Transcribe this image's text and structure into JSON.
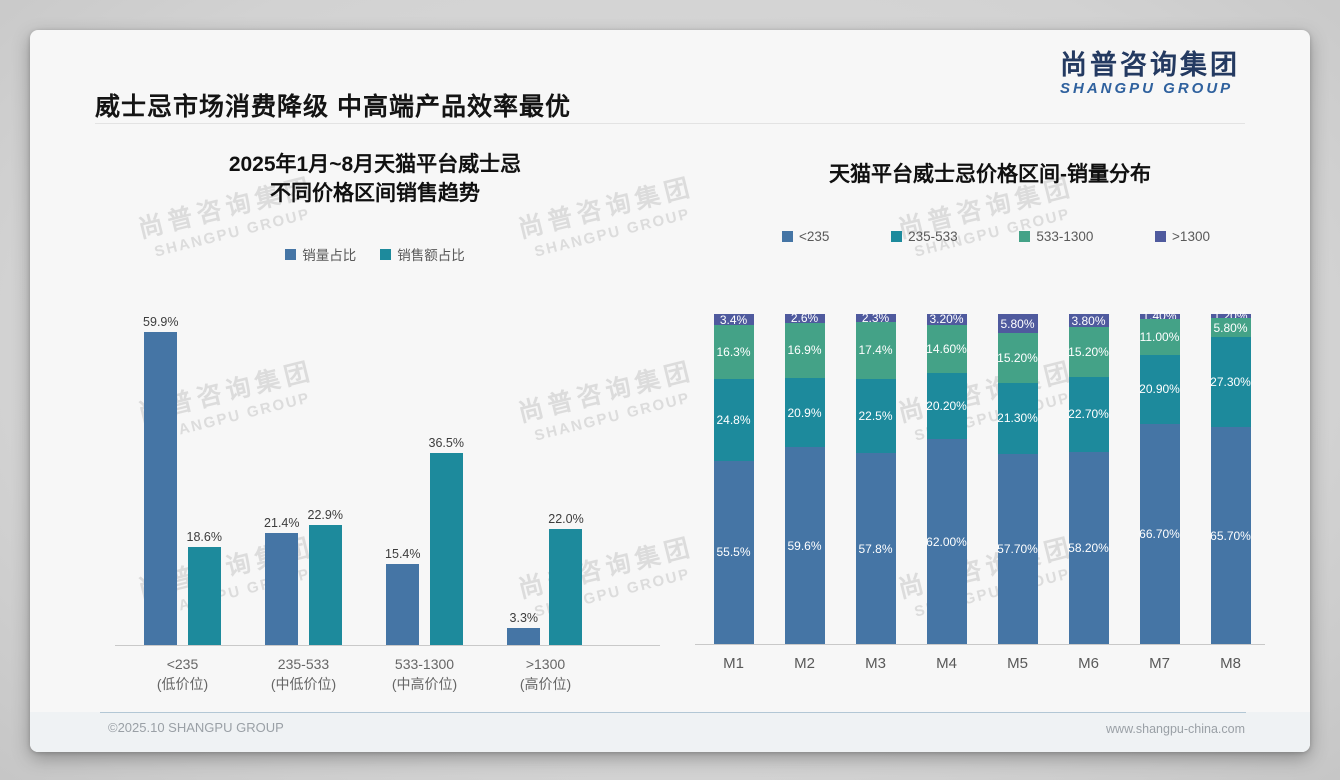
{
  "page": {
    "title": "威士忌市场消费降级 中高端产品效率最优",
    "logo": {
      "cn": "尚普咨询集团",
      "en": "SHANGPU GROUP"
    },
    "watermark": {
      "cn": "尚普咨询集团",
      "en": "SHANGPU GROUP"
    },
    "footer": {
      "left": "©2025.10 SHANGPU GROUP",
      "right": "www.shangpu-china.com"
    }
  },
  "colors": {
    "blue": "#4575a5",
    "teal": "#1d8a9c",
    "green": "#44a287",
    "indigo": "#4f5a9e"
  },
  "chart_data": [
    {
      "type": "bar",
      "title_lines": [
        "2025年1月~8月天猫平台威士忌",
        "不同价格区间销售趋势"
      ],
      "legend_position": "top",
      "grid": false,
      "ylim": [
        0,
        63
      ],
      "categories": [
        {
          "label": "<235",
          "sub": "(低价位)"
        },
        {
          "label": "235-533",
          "sub": "(中低价位)"
        },
        {
          "label": "533-1300",
          "sub": "(中高价位)"
        },
        {
          "label": ">1300",
          "sub": "(高价位)"
        }
      ],
      "series": [
        {
          "name": "销量占比",
          "color": "blue",
          "values": [
            59.9,
            21.4,
            15.4,
            3.3
          ],
          "labels": [
            "59.9%",
            "21.4%",
            "15.4%",
            "3.3%"
          ]
        },
        {
          "name": "销售额占比",
          "color": "teal",
          "values": [
            18.6,
            22.9,
            36.5,
            22.0
          ],
          "labels": [
            "18.6%",
            "22.9%",
            "36.5%",
            "22.0%"
          ]
        }
      ]
    },
    {
      "type": "stacked_bar",
      "title": "天猫平台威士忌价格区间-销量分布",
      "legend_position": "top",
      "grid": false,
      "ylim": [
        0,
        100
      ],
      "categories": [
        "M1",
        "M2",
        "M3",
        "M4",
        "M5",
        "M6",
        "M7",
        "M8"
      ],
      "series": [
        {
          "name": "<235",
          "color": "blue",
          "values": [
            55.5,
            59.6,
            57.8,
            62.0,
            57.7,
            58.2,
            66.7,
            65.7
          ],
          "labels": [
            "55.5%",
            "59.6%",
            "57.8%",
            "62.00%",
            "57.70%",
            "58.20%",
            "66.70%",
            "65.70%"
          ]
        },
        {
          "name": "235-533",
          "color": "teal",
          "values": [
            24.8,
            20.9,
            22.5,
            20.2,
            21.3,
            22.7,
            20.9,
            27.3
          ],
          "labels": [
            "24.8%",
            "20.9%",
            "22.5%",
            "20.20%",
            "21.30%",
            "22.70%",
            "20.90%",
            "27.30%"
          ]
        },
        {
          "name": "533-1300",
          "color": "green",
          "values": [
            16.3,
            16.9,
            17.4,
            14.6,
            15.2,
            15.2,
            11.0,
            5.8
          ],
          "labels": [
            "16.3%",
            "16.9%",
            "17.4%",
            "14.60%",
            "15.20%",
            "15.20%",
            "11.00%",
            "5.80%"
          ]
        },
        {
          "name": ">1300",
          "color": "indigo",
          "values": [
            3.4,
            2.6,
            2.3,
            3.2,
            5.8,
            3.8,
            1.4,
            1.2
          ],
          "labels": [
            "3.4%",
            "2.6%",
            "2.3%",
            "3.20%",
            "5.80%",
            "3.80%",
            "1.40%",
            "1.20%"
          ]
        }
      ]
    }
  ]
}
